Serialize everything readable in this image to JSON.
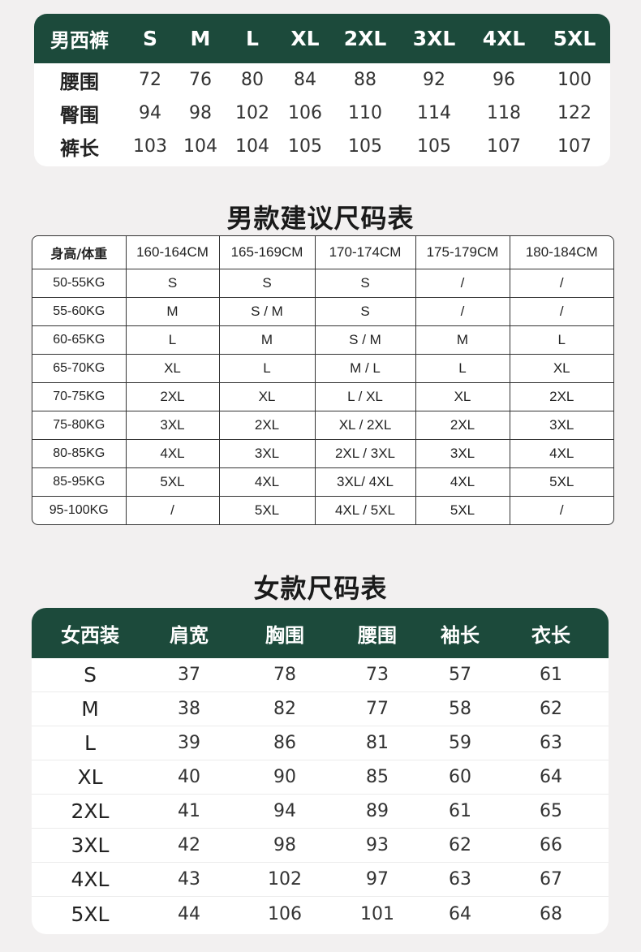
{
  "pants": {
    "header": [
      "男西裤",
      "S",
      "M",
      "L",
      "XL",
      "2XL",
      "3XL",
      "4XL",
      "5XL"
    ],
    "rows": [
      {
        "label": "腰围",
        "values": [
          "72",
          "76",
          "80",
          "84",
          "88",
          "92",
          "96",
          "100"
        ]
      },
      {
        "label": "臀围",
        "values": [
          "94",
          "98",
          "102",
          "106",
          "110",
          "114",
          "118",
          "122"
        ]
      },
      {
        "label": "裤长",
        "values": [
          "103",
          "104",
          "104",
          "105",
          "105",
          "105",
          "107",
          "107"
        ]
      }
    ]
  },
  "men_recommendation": {
    "title": "男款建议尺码表",
    "header": [
      "身高/体重",
      "160-164CM",
      "165-169CM",
      "170-174CM",
      "175-179CM",
      "180-184CM"
    ],
    "rows": [
      {
        "label": "50-55KG",
        "values": [
          "S",
          "S",
          "S",
          "/",
          "/"
        ]
      },
      {
        "label": "55-60KG",
        "values": [
          "M",
          "S / M",
          "S",
          "/",
          "/"
        ]
      },
      {
        "label": "60-65KG",
        "values": [
          "L",
          "M",
          "S / M",
          "M",
          "L"
        ]
      },
      {
        "label": "65-70KG",
        "values": [
          "XL",
          "L",
          "M / L",
          "L",
          "XL"
        ]
      },
      {
        "label": "70-75KG",
        "values": [
          "2XL",
          "XL",
          "L / XL",
          "XL",
          "2XL"
        ]
      },
      {
        "label": "75-80KG",
        "values": [
          "3XL",
          "2XL",
          "XL / 2XL",
          "2XL",
          "3XL"
        ]
      },
      {
        "label": "80-85KG",
        "values": [
          "4XL",
          "3XL",
          "2XL / 3XL",
          "3XL",
          "4XL"
        ]
      },
      {
        "label": "85-95KG",
        "values": [
          "5XL",
          "4XL",
          "3XL/ 4XL",
          "4XL",
          "5XL"
        ]
      },
      {
        "label": "95-100KG",
        "values": [
          "/",
          "5XL",
          "4XL / 5XL",
          "5XL",
          "/"
        ]
      }
    ]
  },
  "women": {
    "title": "女款尺码表",
    "header": [
      "女西装",
      "肩宽",
      "胸围",
      "腰围",
      "袖长",
      "衣长"
    ],
    "rows": [
      {
        "label": "S",
        "values": [
          "37",
          "78",
          "73",
          "57",
          "61"
        ]
      },
      {
        "label": "M",
        "values": [
          "38",
          "82",
          "77",
          "58",
          "62"
        ]
      },
      {
        "label": "L",
        "values": [
          "39",
          "86",
          "81",
          "59",
          "63"
        ]
      },
      {
        "label": "XL",
        "values": [
          "40",
          "90",
          "85",
          "60",
          "64"
        ]
      },
      {
        "label": "2XL",
        "values": [
          "41",
          "94",
          "89",
          "61",
          "65"
        ]
      },
      {
        "label": "3XL",
        "values": [
          "42",
          "98",
          "93",
          "62",
          "66"
        ]
      },
      {
        "label": "4XL",
        "values": [
          "43",
          "102",
          "97",
          "63",
          "67"
        ]
      },
      {
        "label": "5XL",
        "values": [
          "44",
          "106",
          "101",
          "64",
          "68"
        ]
      }
    ]
  },
  "colors": {
    "header_green": "#1c4a3b",
    "background": "#f2f0f0"
  }
}
